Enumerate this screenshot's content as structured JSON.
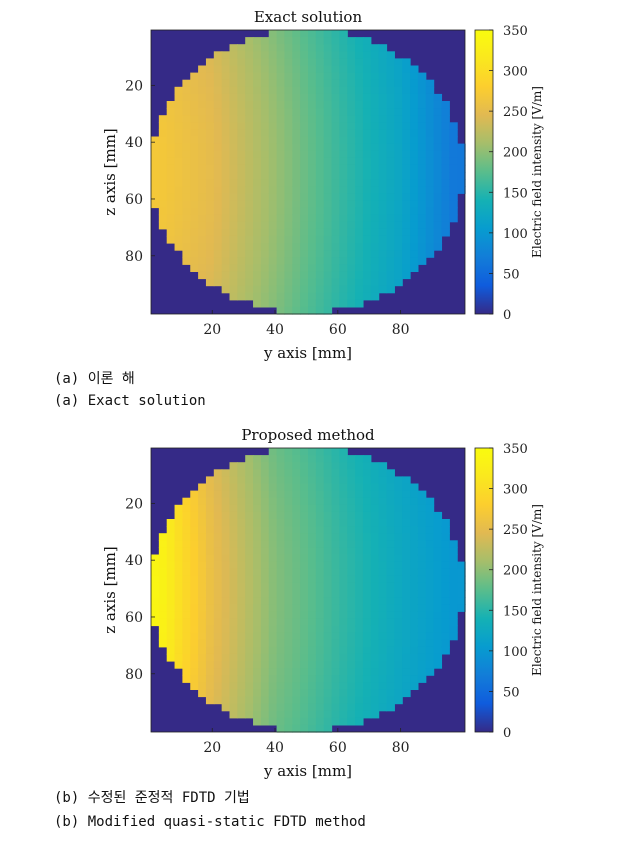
{
  "chart_data": [
    {
      "type": "heatmap",
      "title": "Exact solution",
      "xlabel": "y axis [mm]",
      "ylabel": "z axis [mm]",
      "colorbar_label": "Electric field intensity [V/m]",
      "xlim": [
        1,
        100
      ],
      "ylim": [
        1,
        100
      ],
      "y_reversed": true,
      "x_ticks": [
        20,
        40,
        60,
        80
      ],
      "y_ticks": [
        20,
        40,
        60,
        80
      ],
      "colorbar_range": [
        0,
        350
      ],
      "colorbar_ticks": [
        0,
        50,
        100,
        150,
        200,
        250,
        300,
        350
      ],
      "colormap": "parula",
      "background_value": 0,
      "disc": {
        "center_y_mm": 50,
        "center_z_mm": 50,
        "radius_mm": 50
      },
      "field_samples": [
        {
          "y": 3,
          "z": 50,
          "value": 270
        },
        {
          "y": 20,
          "z": 50,
          "value": 250
        },
        {
          "y": 40,
          "z": 50,
          "value": 205
        },
        {
          "y": 50,
          "z": 50,
          "value": 182
        },
        {
          "y": 60,
          "z": 50,
          "value": 160
        },
        {
          "y": 80,
          "z": 50,
          "value": 120
        },
        {
          "y": 97,
          "z": 50,
          "value": 65
        }
      ],
      "grid": false
    },
    {
      "type": "heatmap",
      "title": "Proposed method",
      "xlabel": "y axis [mm]",
      "ylabel": "z axis [mm]",
      "colorbar_label": "Electric field intensity [V/m]",
      "xlim": [
        1,
        100
      ],
      "ylim": [
        1,
        100
      ],
      "y_reversed": true,
      "x_ticks": [
        20,
        40,
        60,
        80
      ],
      "y_ticks": [
        20,
        40,
        60,
        80
      ],
      "colorbar_range": [
        0,
        350
      ],
      "colorbar_ticks": [
        0,
        50,
        100,
        150,
        200,
        250,
        300,
        350
      ],
      "colormap": "parula",
      "background_value": 0,
      "disc": {
        "center_y_mm": 50,
        "center_z_mm": 50,
        "radius_mm": 50
      },
      "field_samples": [
        {
          "y": 3,
          "z": 50,
          "value": 340
        },
        {
          "y": 10,
          "z": 50,
          "value": 300
        },
        {
          "y": 20,
          "z": 50,
          "value": 255
        },
        {
          "y": 40,
          "z": 50,
          "value": 195
        },
        {
          "y": 50,
          "z": 50,
          "value": 178
        },
        {
          "y": 60,
          "z": 50,
          "value": 158
        },
        {
          "y": 80,
          "z": 50,
          "value": 125
        },
        {
          "y": 97,
          "z": 50,
          "value": 100
        }
      ],
      "grid": false
    }
  ],
  "captions": {
    "a_korean": "(a) 이론 해",
    "a_english": "(a) Exact solution",
    "b_korean": "(b) 수정된 준정적 FDTD 기법",
    "b_english": "(b) Modified quasi-static FDTD method"
  }
}
